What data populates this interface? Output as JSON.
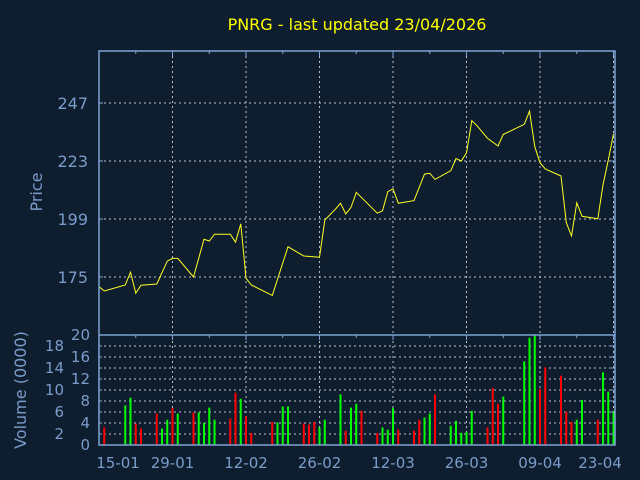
{
  "chart_data": [
    {
      "type": "line",
      "title": "PNRG - last updated 23/04/2026",
      "ylabel": "Price",
      "year": 2026,
      "ylim": [
        163,
        265
      ],
      "yticks": [
        175,
        199,
        223,
        247
      ],
      "grid": true,
      "colors": {
        "background": "#0f1e2f",
        "axis": "#7fa4d4",
        "grid": "#b8c2cc",
        "line": "#ffff20",
        "text": "#7a9ccb",
        "title": "#ffff00"
      },
      "series": [
        {
          "x": [
            "15-01",
            "16-01",
            "20-01",
            "21-01",
            "22-01",
            "23-01",
            "26-01",
            "28-01",
            "29-01",
            "30-01",
            "02-02",
            "04-02",
            "05-02",
            "06-02",
            "09-02",
            "10-02",
            "11-02",
            "12-02",
            "13-02",
            "17-02",
            "20-02",
            "23-02",
            "26-02",
            "27-02",
            "01-03",
            "02-03",
            "03-03",
            "04-03",
            "05-03",
            "09-03",
            "10-03",
            "11-03",
            "12-03",
            "13-03",
            "16-03",
            "18-03",
            "19-03",
            "20-03",
            "23-03",
            "24-03",
            "25-03",
            "26-03",
            "27-03",
            "28-03",
            "30-03",
            "01-04",
            "02-04",
            "06-04",
            "07-04",
            "08-04",
            "09-04",
            "10-04",
            "13-04",
            "14-04",
            "15-04",
            "16-04",
            "17-04",
            "20-04",
            "21-04",
            "22-04",
            "23-04"
          ],
          "y": [
            171.0,
            169.2,
            171.7,
            177.0,
            168.3,
            171.6,
            172.1,
            181.6,
            182.7,
            182.7,
            175.0,
            190.6,
            189.9,
            192.7,
            192.7,
            189.4,
            197.0,
            174.5,
            171.7,
            167.4,
            187.5,
            183.7,
            183.2,
            198.6,
            203.0,
            205.5,
            201.1,
            203.8,
            210.0,
            201.4,
            202.4,
            210.3,
            211.5,
            205.5,
            206.6,
            217.6,
            217.9,
            215.4,
            219.0,
            224.0,
            223.0,
            226.4,
            239.7,
            237.6,
            232.4,
            229.2,
            234.0,
            238.2,
            243.6,
            228.9,
            222.3,
            219.7,
            216.8,
            197.5,
            192.0,
            205.7,
            200.1,
            199.1,
            213.1,
            223.4,
            234.2
          ]
        }
      ]
    },
    {
      "type": "bar",
      "ylabel": "Volume (0000)",
      "ylim": [
        0,
        20
      ],
      "yticks": [
        0,
        2,
        4,
        6,
        8,
        10,
        12,
        14,
        16,
        18,
        20
      ],
      "xticks": [
        "15-01",
        "29-01",
        "12-02",
        "26-02",
        "12-03",
        "26-03",
        "09-04",
        "23-04"
      ],
      "grid": true,
      "colors": {
        "up": "#00ff00",
        "down": "#ff0000"
      },
      "series": [
        {
          "x": [
            "16-01",
            "20-01",
            "21-01",
            "22-01",
            "23-01",
            "26-01",
            "27-01",
            "28-01",
            "29-01",
            "30-01",
            "02-02",
            "03-02",
            "04-02",
            "05-02",
            "06-02",
            "09-02",
            "10-02",
            "11-02",
            "12-02",
            "13-02",
            "17-02",
            "18-02",
            "19-02",
            "20-02",
            "23-02",
            "24-02",
            "25-02",
            "26-02",
            "27-02",
            "02-03",
            "03-03",
            "04-03",
            "05-03",
            "06-03",
            "09-03",
            "10-03",
            "11-03",
            "12-03",
            "13-03",
            "16-03",
            "17-03",
            "18-03",
            "19-03",
            "20-03",
            "23-03",
            "24-03",
            "25-03",
            "26-03",
            "27-03",
            "30-03",
            "31-03",
            "01-04",
            "02-04",
            "06-04",
            "07-04",
            "08-04",
            "09-04",
            "10-04",
            "13-04",
            "14-04",
            "15-04",
            "16-04",
            "17-04",
            "20-04",
            "21-04",
            "22-04",
            "23-04"
          ],
          "values": [
            3.2,
            7.2,
            8.6,
            3.9,
            3.0,
            5.7,
            3.0,
            4.6,
            6.7,
            5.7,
            5.9,
            5.9,
            4.0,
            6.8,
            4.6,
            4.8,
            9.5,
            8.4,
            5.2,
            2.2,
            4.2,
            4.1,
            7.0,
            7.0,
            3.9,
            3.7,
            4.2,
            3.2,
            4.6,
            9.2,
            2.6,
            6.8,
            7.5,
            6.2,
            2.2,
            3.2,
            2.8,
            6.7,
            2.8,
            2.6,
            4.6,
            5.0,
            5.7,
            9.2,
            3.5,
            4.4,
            2.2,
            2.4,
            6.2,
            3.2,
            10.4,
            7.5,
            8.8,
            15.2,
            19.5,
            19.9,
            10.2,
            14.1,
            12.6,
            6.1,
            4.2,
            4.6,
            8.2,
            4.6,
            13.2,
            9.7,
            6.2
          ],
          "direction": [
            "down",
            "up",
            "up",
            "down",
            "down",
            "down",
            "up",
            "up",
            "down",
            "up",
            "down",
            "up",
            "up",
            "up",
            "up",
            "down",
            "down",
            "up",
            "down",
            "down",
            "down",
            "up",
            "up",
            "up",
            "down",
            "down",
            "down",
            "up",
            "up",
            "up",
            "down",
            "up",
            "up",
            "down",
            "down",
            "up",
            "up",
            "up",
            "down",
            "down",
            "down",
            "up",
            "up",
            "down",
            "up",
            "up",
            "up",
            "up",
            "up",
            "down",
            "down",
            "down",
            "up",
            "up",
            "up",
            "up",
            "down",
            "down",
            "down",
            "down",
            "down",
            "up",
            "up",
            "down",
            "up",
            "up",
            "up"
          ]
        }
      ]
    }
  ]
}
